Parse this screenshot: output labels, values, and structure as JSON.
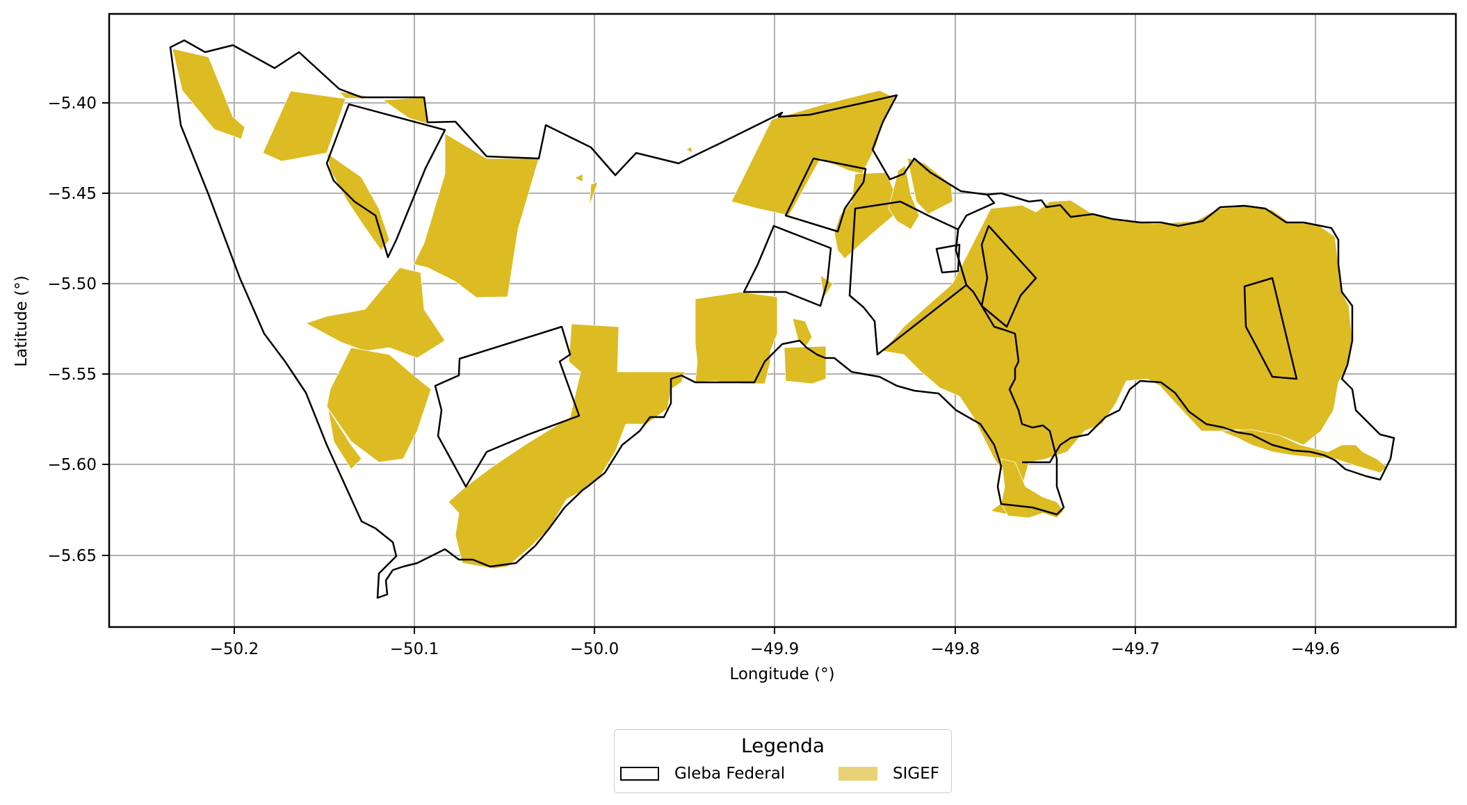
{
  "map": {
    "xlabel": "Longitude (°)",
    "ylabel": "Latitude (°)",
    "x_ticks": [
      "−50.2",
      "−50.1",
      "−50.0",
      "−49.9",
      "−49.8",
      "−49.7",
      "−49.6"
    ],
    "y_ticks": [
      "−5.40",
      "−5.45",
      "−5.50",
      "−5.55",
      "−5.60",
      "−5.65"
    ],
    "grid": true,
    "colors": {
      "sigef_fill": "#ddbb22",
      "gleba_edge": "#000000",
      "grid": "#b0b0b0"
    }
  },
  "legend": {
    "title": "Legenda",
    "items": [
      {
        "label": "Gleba Federal",
        "icon": "outlined-box-swatch"
      },
      {
        "label": "SIGEF",
        "icon": "filled-gold-swatch"
      }
    ]
  }
}
